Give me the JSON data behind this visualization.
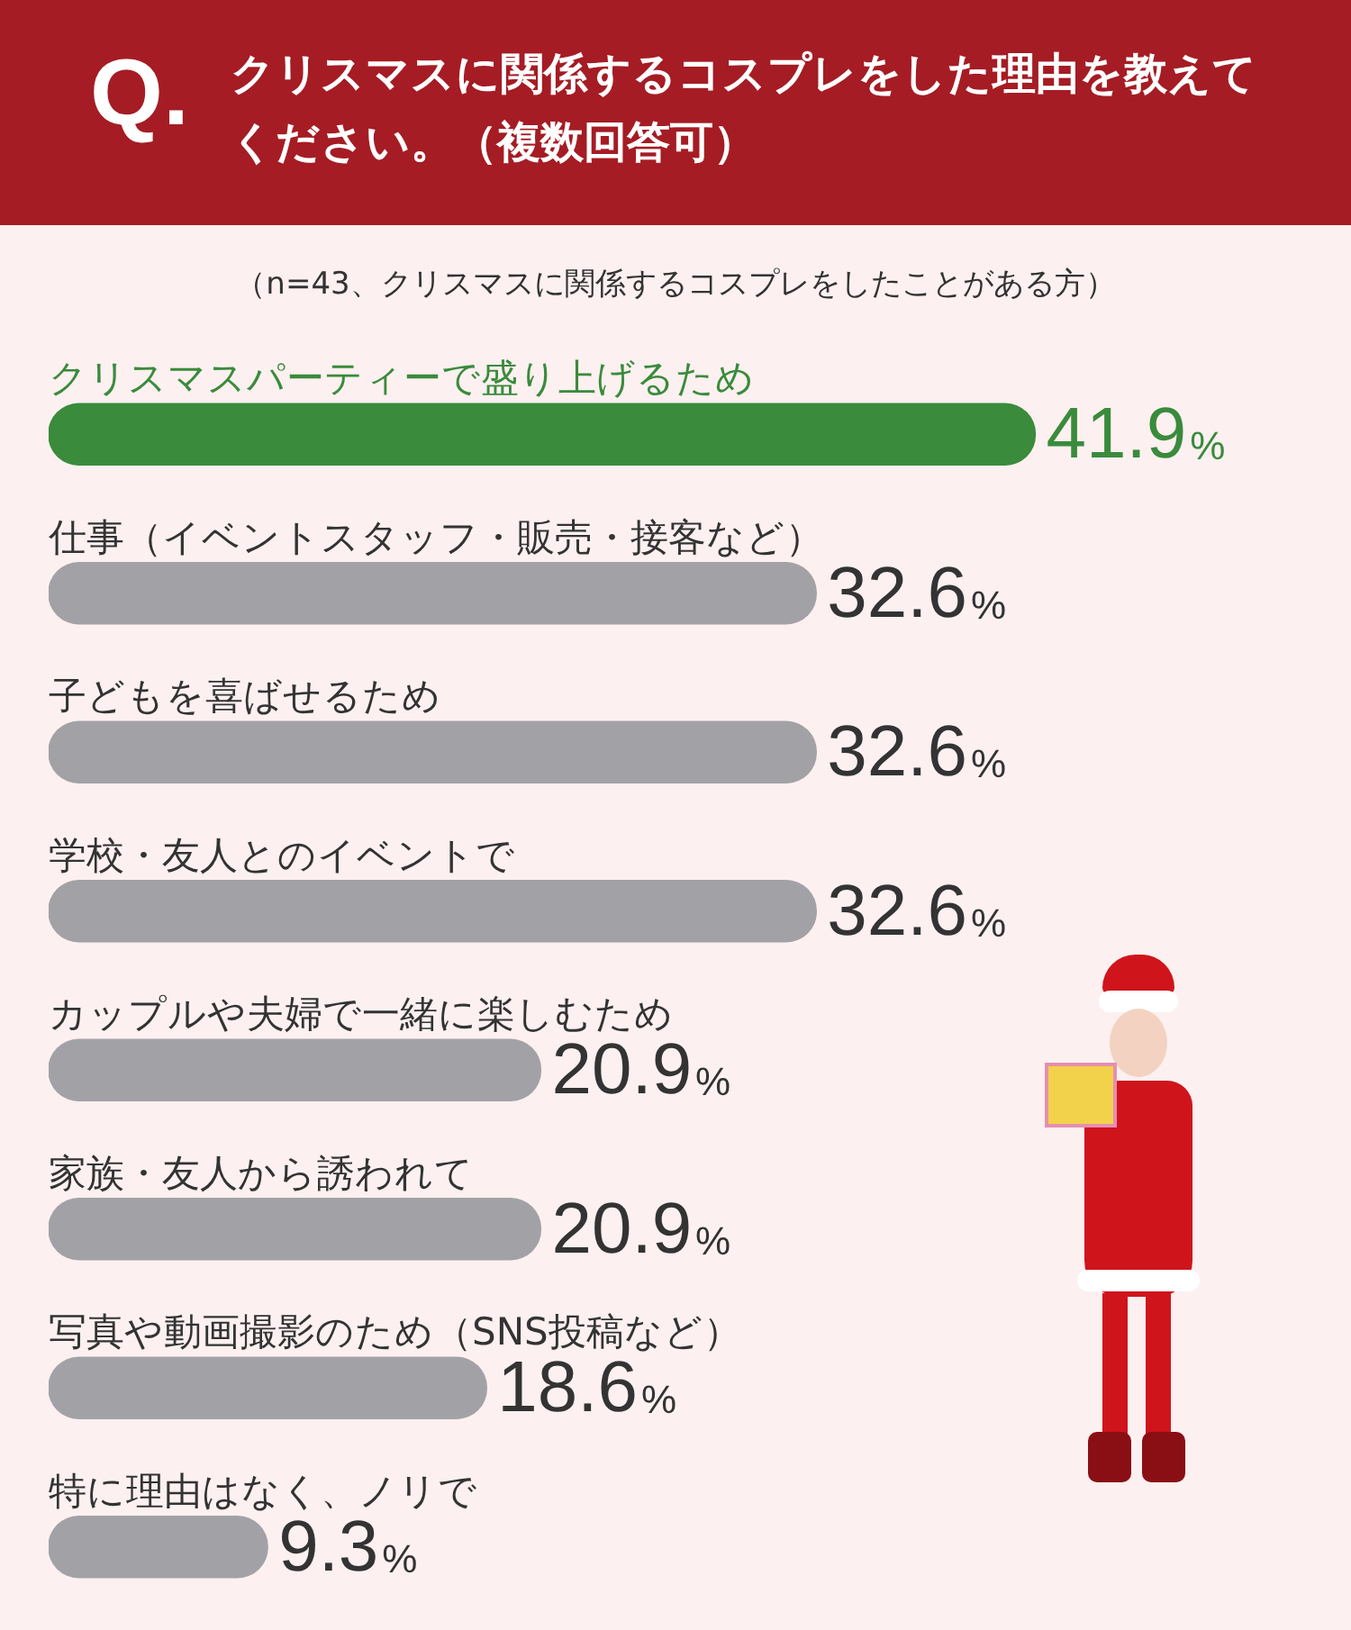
{
  "chart_data": {
    "type": "bar",
    "orientation": "horizontal",
    "title": "クリスマスに関係するコスプレをした理由を教えてください。（複数回答可）",
    "subtitle": "（n=43、クリスマスに関係するコスプレをしたことがある方）",
    "annotations": [
      "Q."
    ],
    "categories": [
      "クリスマスパーティーで盛り上げるため",
      "仕事（イベントスタッフ・販売・接客など）",
      "子どもを喜ばせるため",
      "学校・友人とのイベントで",
      "カップルや夫婦で一緒に楽しむため",
      "家族・友人から誘われて",
      "写真や動画撮影のため（SNS投稿など）",
      "特に理由はなく、ノリで"
    ],
    "values": [
      41.9,
      32.6,
      32.6,
      32.6,
      20.9,
      20.9,
      18.6,
      9.3
    ],
    "colors": [
      "#3a8b3c",
      "#a2a2a6",
      "#a2a2a6",
      "#a2a2a6",
      "#a2a2a6",
      "#a2a2a6",
      "#a2a2a6",
      "#a2a2a6"
    ],
    "value_labels": [
      "41.9%",
      "32.6%",
      "32.6%",
      "32.6%",
      "20.9%",
      "20.9%",
      "18.6%",
      "9.3%"
    ],
    "legend": false
  }
}
